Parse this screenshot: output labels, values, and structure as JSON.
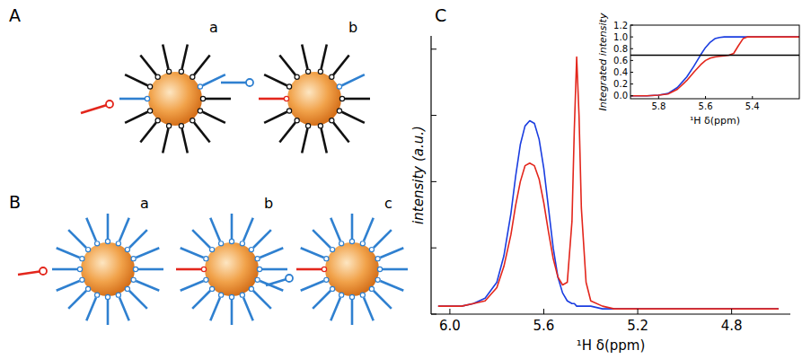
{
  "diagrams": {
    "A": {
      "label": "A",
      "parts": [
        "a",
        "b"
      ]
    },
    "B": {
      "label": "B",
      "parts": [
        "a",
        "b",
        "c"
      ]
    }
  },
  "chart_data": [
    {
      "type": "line",
      "panel": "C",
      "y_label": "intensity (a.u.)",
      "x_label": "¹H δ(ppm)",
      "x": [
        6.05,
        5.95,
        5.9,
        5.85,
        5.8,
        5.77,
        5.74,
        5.72,
        5.7,
        5.68,
        5.66,
        5.64,
        5.62,
        5.6,
        5.58,
        5.56,
        5.54,
        5.52,
        5.5,
        5.48,
        5.47,
        5.46,
        5.45,
        5.44,
        5.42,
        5.4,
        5.35,
        5.3,
        5.2,
        5.0,
        4.8,
        4.6
      ],
      "xlim": [
        6.08,
        4.55
      ],
      "ylim": [
        0,
        1.05
      ],
      "xticks": [
        {
          "value": 6,
          "label": "6.0"
        },
        5.6,
        5.2,
        4.8
      ],
      "yticks": [
        0,
        0.25,
        0.5,
        0.75,
        1
      ],
      "tick_labels": "x",
      "series": [
        {
          "color": "#1a3de0",
          "values": [
            0.03,
            0.03,
            0.04,
            0.06,
            0.12,
            0.22,
            0.38,
            0.52,
            0.64,
            0.71,
            0.73,
            0.72,
            0.66,
            0.55,
            0.4,
            0.25,
            0.14,
            0.08,
            0.05,
            0.04,
            0.04,
            0.03,
            0.03,
            0.03,
            0.03,
            0.03,
            0.02,
            0.02,
            0.02,
            0.02,
            0.02,
            0.02
          ]
        },
        {
          "color": "#e3261c",
          "values": [
            0.03,
            0.03,
            0.04,
            0.05,
            0.1,
            0.18,
            0.3,
            0.41,
            0.5,
            0.56,
            0.57,
            0.56,
            0.51,
            0.42,
            0.31,
            0.21,
            0.14,
            0.11,
            0.12,
            0.35,
            0.7,
            0.97,
            0.75,
            0.4,
            0.12,
            0.05,
            0.03,
            0.02,
            0.02,
            0.02,
            0.02,
            0.02
          ]
        }
      ]
    },
    {
      "type": "line",
      "y_label": "Integrated intensity",
      "x_label": "¹H δ(ppm)",
      "x": [
        5.92,
        5.85,
        5.8,
        5.76,
        5.72,
        5.68,
        5.65,
        5.62,
        5.6,
        5.58,
        5.56,
        5.54,
        5.52,
        5.5,
        5.48,
        5.46,
        5.44,
        5.42,
        5.4,
        5.3,
        5.2
      ],
      "xlim": [
        5.92,
        5.2
      ],
      "ylim": [
        -0.05,
        1.2
      ],
      "xticks": [
        5.8,
        5.6,
        5.4
      ],
      "yticks": [
        {
          "value": 0,
          "label": "0.0"
        },
        0.2,
        0.4,
        0.6,
        0.8,
        {
          "value": 1,
          "label": "1.0"
        },
        1.2
      ],
      "series": [
        {
          "color": "#1a3de0",
          "values": [
            0,
            0,
            0.01,
            0.04,
            0.14,
            0.32,
            0.5,
            0.7,
            0.82,
            0.91,
            0.97,
            0.99,
            1,
            1,
            1,
            1,
            1,
            1,
            1,
            1,
            1
          ]
        },
        {
          "color": "#e3261c",
          "values": [
            0,
            0,
            0.01,
            0.03,
            0.11,
            0.26,
            0.4,
            0.53,
            0.6,
            0.64,
            0.66,
            0.67,
            0.68,
            0.69,
            0.72,
            0.85,
            0.97,
            1,
            1,
            1,
            1
          ]
        },
        {
          "color": "#000000",
          "values": [
            0.69,
            0.69,
            0.69,
            0.69,
            0.69,
            0.69,
            0.69,
            0.69,
            0.69,
            0.69,
            0.69,
            0.69,
            0.69,
            0.69,
            0.69,
            0.69,
            0.69,
            0.69,
            0.69,
            0.69,
            0.69
          ]
        }
      ]
    }
  ]
}
